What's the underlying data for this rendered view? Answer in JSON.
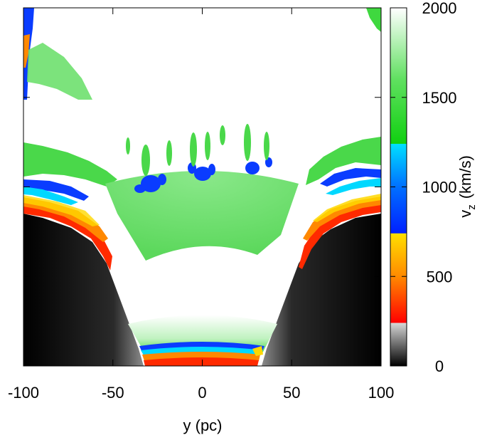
{
  "chart_data": {
    "type": "heatmap",
    "title": "",
    "xlabel": "y (pc)",
    "colorbar_label": "v",
    "colorbar_label_sub": "z",
    "colorbar_unit": "(km/s)",
    "xlim": [
      -100,
      100
    ],
    "x_ticks": [
      -100,
      -50,
      0,
      50,
      100
    ],
    "x_tick_labels": [
      "-100",
      "-50",
      "0",
      "50",
      "100"
    ],
    "clim": [
      0,
      2000
    ],
    "colorbar_ticks": [
      0,
      500,
      1000,
      1500,
      2000
    ],
    "colorbar_tick_labels": [
      "0",
      "500",
      "1000",
      "1500",
      "2000"
    ],
    "colormap": [
      {
        "v": 0,
        "color": "#000000"
      },
      {
        "v": 240,
        "color": "#d8d8d8"
      },
      {
        "v": 241,
        "color": "#ff0000"
      },
      {
        "v": 500,
        "color": "#ff8a00"
      },
      {
        "v": 740,
        "color": "#ffe000"
      },
      {
        "v": 741,
        "color": "#0020ff"
      },
      {
        "v": 1000,
        "color": "#0070ff"
      },
      {
        "v": 1240,
        "color": "#00e0ff"
      },
      {
        "v": 1241,
        "color": "#10d010"
      },
      {
        "v": 1600,
        "color": "#60e060"
      },
      {
        "v": 2000,
        "color": "#ffffff"
      }
    ],
    "colors": {
      "background": "#000000",
      "outflow": "#ffffff",
      "green": "#55e055",
      "blue": "#0a3cff",
      "cyan": "#00d8ff",
      "red": "#ff2a00",
      "orange": "#ff8800",
      "yellow": "#ffd800",
      "gray": "#9a9a9a"
    },
    "grid": false,
    "legend": "colorbar-right"
  }
}
